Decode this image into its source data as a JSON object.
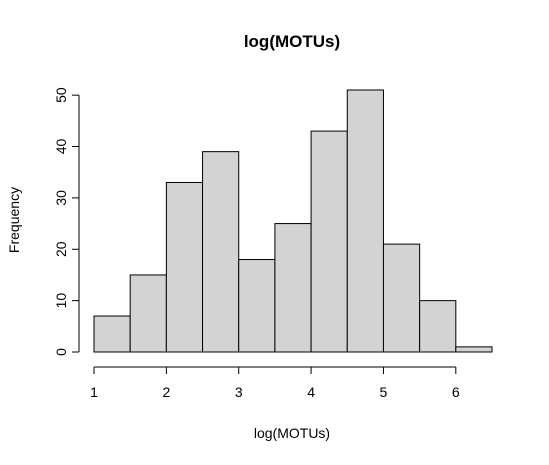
{
  "chart_data": {
    "type": "bar",
    "title": "log(MOTUs)",
    "xlabel": "log(MOTUs)",
    "ylabel": "Frequency",
    "bins": [
      {
        "x0": 1.0,
        "x1": 1.5,
        "count": 7
      },
      {
        "x0": 1.5,
        "x1": 2.0,
        "count": 15
      },
      {
        "x0": 2.0,
        "x1": 2.5,
        "count": 33
      },
      {
        "x0": 2.5,
        "x1": 3.0,
        "count": 39
      },
      {
        "x0": 3.0,
        "x1": 3.5,
        "count": 18
      },
      {
        "x0": 3.5,
        "x1": 4.0,
        "count": 25
      },
      {
        "x0": 4.0,
        "x1": 4.5,
        "count": 43
      },
      {
        "x0": 4.5,
        "x1": 5.0,
        "count": 51
      },
      {
        "x0": 5.0,
        "x1": 5.5,
        "count": 21
      },
      {
        "x0": 5.5,
        "x1": 6.0,
        "count": 10
      },
      {
        "x0": 6.0,
        "x1": 6.5,
        "count": 1
      }
    ],
    "xticks": [
      1,
      2,
      3,
      4,
      5,
      6
    ],
    "yticks": [
      0,
      10,
      20,
      30,
      40,
      50
    ],
    "xlim": [
      1,
      6.5
    ],
    "ylim": [
      0,
      51
    ],
    "grid": false,
    "bar_fill": "#d3d3d3",
    "bar_stroke": "#000000"
  }
}
